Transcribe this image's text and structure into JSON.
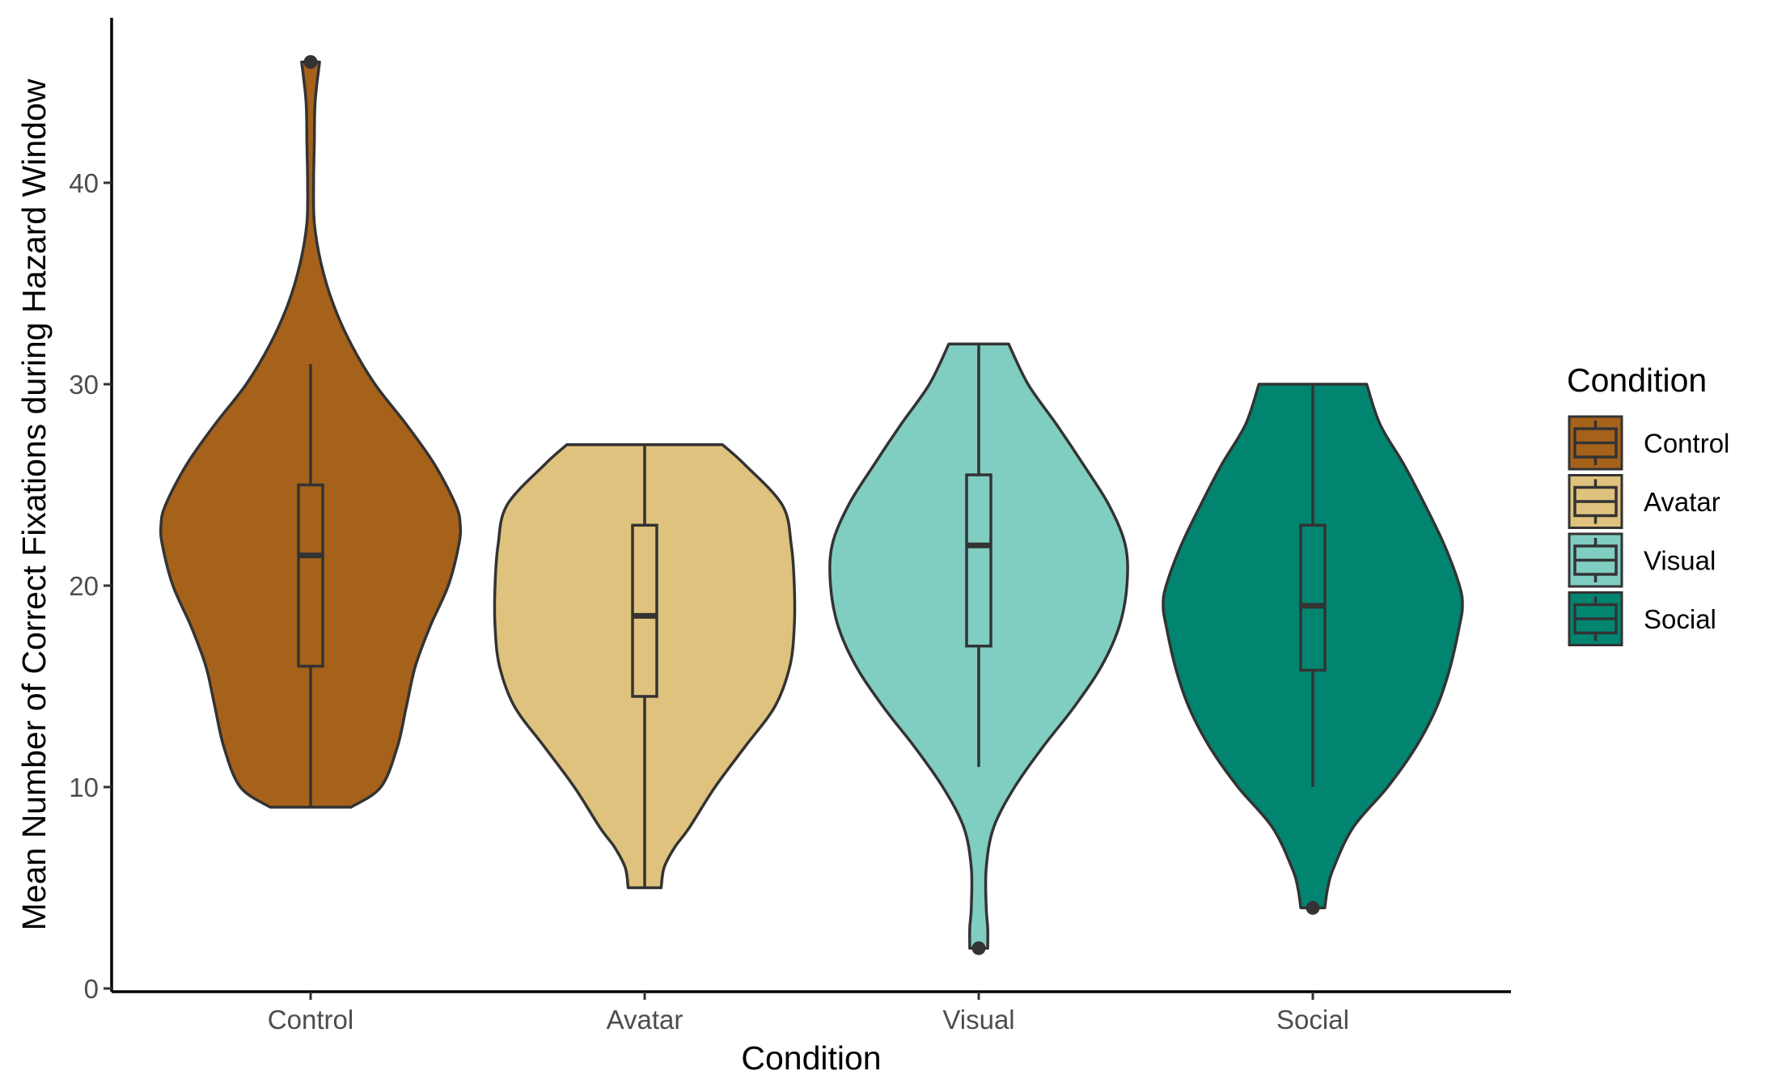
{
  "chart_data": {
    "type": "violin",
    "title": "",
    "xlabel": "Condition",
    "ylabel": "Mean Number of Correct Fixations during Hazard Window",
    "ylim": [
      0,
      47
    ],
    "yticks": [
      0,
      10,
      20,
      30,
      40
    ],
    "grid": false,
    "legend": {
      "title": "Condition",
      "position": "right",
      "entries": [
        "Control",
        "Avatar",
        "Visual",
        "Social"
      ]
    },
    "categories": [
      "Control",
      "Avatar",
      "Visual",
      "Social"
    ],
    "groups": [
      {
        "name": "Control",
        "color": "#A6611A",
        "min": 9,
        "max": 46,
        "box": {
          "lower_whisker": 9,
          "q1": 16,
          "median": 21.5,
          "q3": 25,
          "upper_whisker": 31
        },
        "outliers": [
          46
        ],
        "density": [
          [
            9,
            0.27
          ],
          [
            10,
            0.47
          ],
          [
            12,
            0.58
          ],
          [
            14,
            0.64
          ],
          [
            16,
            0.7
          ],
          [
            18,
            0.8
          ],
          [
            20,
            0.92
          ],
          [
            22,
            0.99
          ],
          [
            23,
            1.0
          ],
          [
            24,
            0.97
          ],
          [
            26,
            0.83
          ],
          [
            28,
            0.64
          ],
          [
            30,
            0.43
          ],
          [
            32,
            0.27
          ],
          [
            34,
            0.15
          ],
          [
            36,
            0.07
          ],
          [
            38,
            0.025
          ],
          [
            40,
            0.02
          ],
          [
            42,
            0.025
          ],
          [
            44,
            0.03
          ],
          [
            46,
            0.06
          ]
        ]
      },
      {
        "name": "Avatar",
        "color": "#DFC27D",
        "min": 5,
        "max": 27,
        "box": {
          "lower_whisker": 5,
          "q1": 14.5,
          "median": 18.5,
          "q3": 23,
          "upper_whisker": 27
        },
        "outliers": [],
        "density": [
          [
            5,
            0.11
          ],
          [
            6,
            0.13
          ],
          [
            7,
            0.2
          ],
          [
            8,
            0.3
          ],
          [
            10,
            0.47
          ],
          [
            12,
            0.67
          ],
          [
            14,
            0.87
          ],
          [
            16,
            0.97
          ],
          [
            18,
            1.0
          ],
          [
            20,
            1.0
          ],
          [
            22,
            0.98
          ],
          [
            24,
            0.92
          ],
          [
            26,
            0.67
          ],
          [
            27,
            0.52
          ]
        ]
      },
      {
        "name": "Visual",
        "color": "#80CDC1",
        "min": 2,
        "max": 32,
        "box": {
          "lower_whisker": 11,
          "q1": 17,
          "median": 22,
          "q3": 25.5,
          "upper_whisker": 32
        },
        "outliers": [
          2
        ],
        "density": [
          [
            2,
            0.06
          ],
          [
            3,
            0.06
          ],
          [
            4,
            0.05
          ],
          [
            6,
            0.05
          ],
          [
            8,
            0.1
          ],
          [
            10,
            0.24
          ],
          [
            12,
            0.43
          ],
          [
            14,
            0.64
          ],
          [
            16,
            0.82
          ],
          [
            18,
            0.94
          ],
          [
            20,
            0.99
          ],
          [
            22,
            0.98
          ],
          [
            24,
            0.87
          ],
          [
            26,
            0.7
          ],
          [
            28,
            0.52
          ],
          [
            30,
            0.33
          ],
          [
            32,
            0.2
          ]
        ]
      },
      {
        "name": "Social",
        "color": "#018571",
        "min": 4,
        "max": 30,
        "box": {
          "lower_whisker": 10,
          "q1": 15.8,
          "median": 19,
          "q3": 23,
          "upper_whisker": 30
        },
        "outliers": [
          4
        ],
        "density": [
          [
            4,
            0.08
          ],
          [
            5,
            0.1
          ],
          [
            6,
            0.14
          ],
          [
            8,
            0.27
          ],
          [
            10,
            0.5
          ],
          [
            12,
            0.69
          ],
          [
            14,
            0.83
          ],
          [
            16,
            0.92
          ],
          [
            18,
            0.98
          ],
          [
            19,
            1.0
          ],
          [
            20,
            0.98
          ],
          [
            22,
            0.88
          ],
          [
            24,
            0.75
          ],
          [
            26,
            0.61
          ],
          [
            28,
            0.45
          ],
          [
            30,
            0.36
          ]
        ]
      }
    ]
  }
}
